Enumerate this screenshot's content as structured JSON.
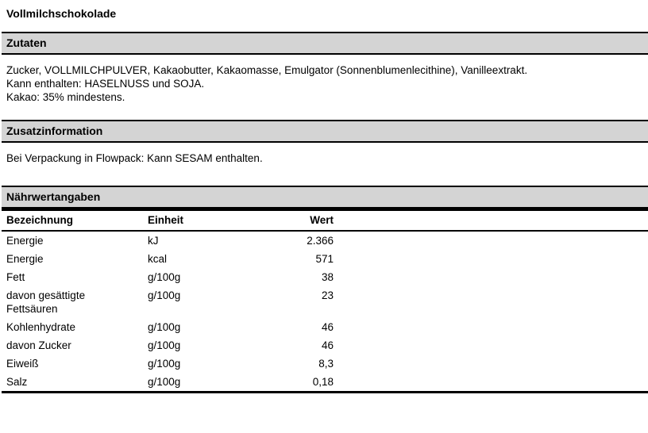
{
  "page": {
    "title": "Vollmilchschokolade"
  },
  "sections": {
    "zutaten": {
      "heading": "Zutaten",
      "lines": [
        "Zucker, VOLLMILCHPULVER, Kakaobutter, Kakaomasse, Emulgator (Sonnenblumenlecithine), Vanilleextrakt.",
        "Kann enthalten: HASELNUSS und SOJA.",
        "Kakao: 35% mindestens."
      ]
    },
    "zusatzinformation": {
      "heading": "Zusatzinformation",
      "text": "Bei Verpackung in Flowpack: Kann SESAM enthalten."
    },
    "naehrwertangaben": {
      "heading": "Nährwertangaben",
      "table": {
        "columns": [
          "Bezeichnung",
          "Einheit",
          "Wert"
        ],
        "rows": [
          {
            "bezeichnung": "Energie",
            "einheit": "kJ",
            "wert": "2.366"
          },
          {
            "bezeichnung": "Energie",
            "einheit": "kcal",
            "wert": "571"
          },
          {
            "bezeichnung": "Fett",
            "einheit": "g/100g",
            "wert": "38"
          },
          {
            "bezeichnung": "davon gesättigte Fettsäuren",
            "einheit": "g/100g",
            "wert": "23"
          },
          {
            "bezeichnung": "Kohlenhydrate",
            "einheit": "g/100g",
            "wert": "46"
          },
          {
            "bezeichnung": "davon Zucker",
            "einheit": "g/100g",
            "wert": "46"
          },
          {
            "bezeichnung": "Eiweiß",
            "einheit": "g/100g",
            "wert": "8,3"
          },
          {
            "bezeichnung": "Salz",
            "einheit": "g/100g",
            "wert": "0,18"
          }
        ]
      }
    }
  },
  "colors": {
    "section_bar_background": "#d4d4d4",
    "border": "#000000",
    "text": "#000000",
    "page_background": "#ffffff"
  }
}
